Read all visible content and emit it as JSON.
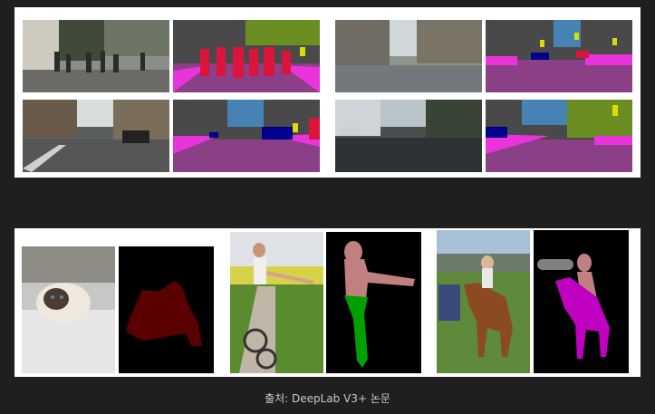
{
  "caption": {
    "text": "출처: DeepLab V3+ 논문"
  },
  "figures": {
    "top_panel": {
      "description_icon": "cityscapes-segmentation-grid"
    },
    "bottom_panel": {
      "description_icon": "pascal-voc-segmentation-row"
    }
  },
  "colors": {
    "page_background": "#1f1f1f",
    "panel_background": "#ffffff",
    "caption_text": "#c9c9c9",
    "seg_road": "#8a3f86",
    "seg_sidewalk": "#e934dc",
    "seg_building": "#494949",
    "seg_vegetation": "#6b8e23",
    "seg_sky": "#4682b4",
    "seg_car": "#00008e",
    "seg_person": "#dc143c",
    "seg_sign": "#dcdc00",
    "seg_cat": "#5a0000",
    "seg_person_voc": "#c08080",
    "seg_bicycle": "#00a000",
    "seg_horse": "#c000c0",
    "seg_car_voc": "#808080"
  }
}
